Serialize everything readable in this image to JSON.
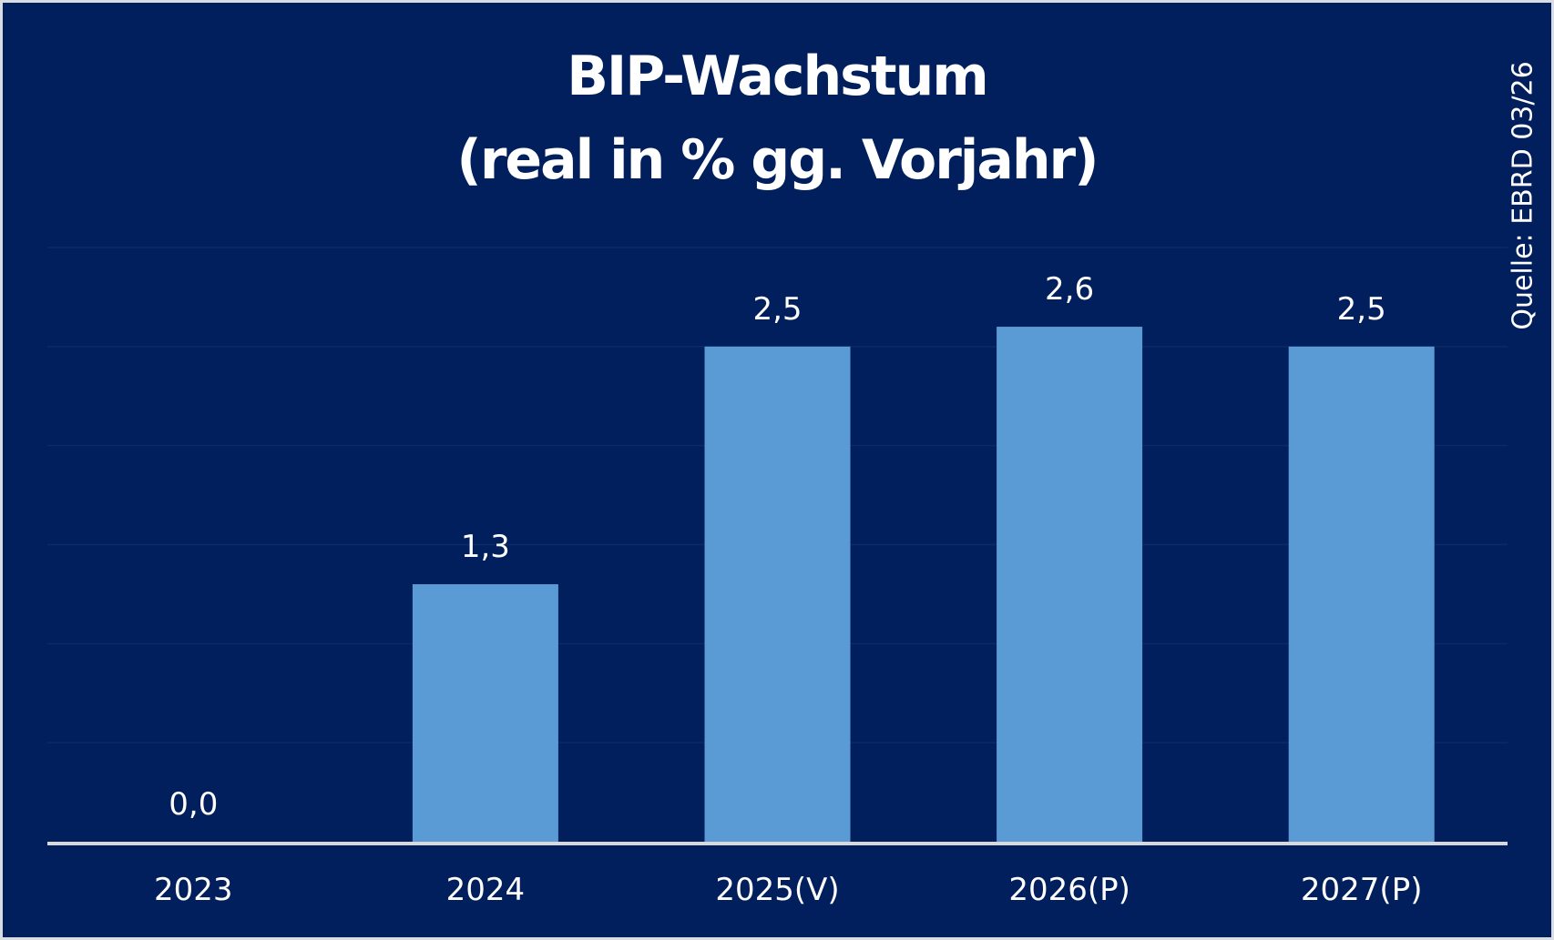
{
  "chart_data": {
    "type": "bar",
    "title_lines": [
      "BIP-Wachstum",
      "(real in % gg. Vorjahr)"
    ],
    "source": "Quelle: EBRD 03/26",
    "categories": [
      "2023",
      "2024",
      "2025(V)",
      "2026(P)",
      "2027(P)"
    ],
    "values": [
      0.0,
      1.3,
      2.5,
      2.6,
      2.5
    ],
    "value_labels": [
      "0,0",
      "1,3",
      "2,5",
      "2,6",
      "2,5"
    ],
    "ylim": [
      0,
      3
    ],
    "grid": true,
    "xlabel": "",
    "ylabel": ""
  },
  "colors": {
    "background": "#001f5c",
    "bar": "#5b9bd5",
    "text": "#ffffff",
    "axis": "#d9d9d9",
    "grid": "#0d2a66"
  }
}
